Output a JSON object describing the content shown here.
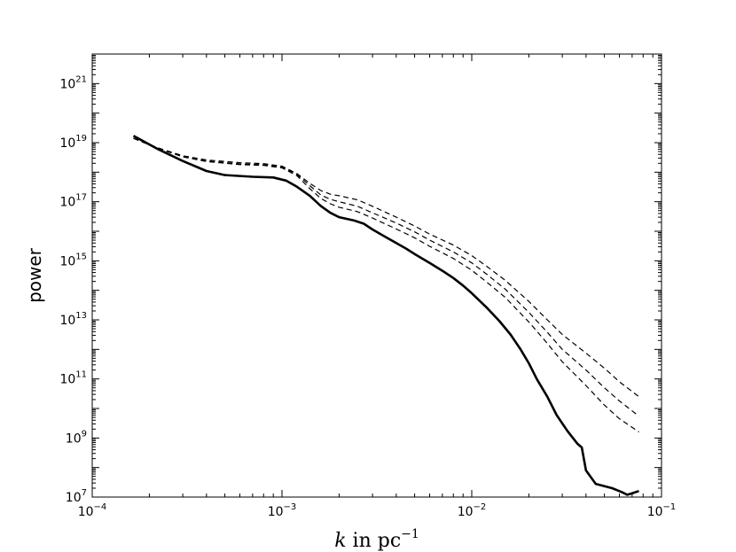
{
  "chart_data": {
    "type": "line",
    "title": "",
    "xlabel": "$k$ in pc$^{-1}$",
    "xlabel_parts": {
      "var": "k",
      "mid": " in pc",
      "sup": "−1"
    },
    "ylabel": "power",
    "x_scale": "log",
    "y_scale": "log",
    "xlim": [
      0.0001,
      0.1
    ],
    "ylim": [
      10000000.0,
      1e+22
    ],
    "grid": false,
    "legend": "none",
    "x_ticks": [
      {
        "base": "10",
        "exp": "-4",
        "value": 0.0001
      },
      {
        "base": "10",
        "exp": "-3",
        "value": 0.001
      },
      {
        "base": "10",
        "exp": "-2",
        "value": 0.01
      },
      {
        "base": "10",
        "exp": "-1",
        "value": 0.1
      }
    ],
    "y_ticks": [
      {
        "base": "10",
        "exp": "7",
        "value": 10000000.0
      },
      {
        "base": "10",
        "exp": "9",
        "value": 1000000000.0
      },
      {
        "base": "10",
        "exp": "11",
        "value": 100000000000.0
      },
      {
        "base": "10",
        "exp": "13",
        "value": 10000000000000.0
      },
      {
        "base": "10",
        "exp": "15",
        "value": 1000000000000000.0
      },
      {
        "base": "10",
        "exp": "17",
        "value": 1e+17
      },
      {
        "base": "10",
        "exp": "19",
        "value": 1e+19
      },
      {
        "base": "10",
        "exp": "21",
        "value": 1e+21
      }
    ],
    "series": [
      {
        "style": "solid",
        "color": "#000000",
        "points": [
          [
            0.000165,
            1.7e+19
          ],
          [
            0.00022,
            6.2e+18
          ],
          [
            0.0003,
            2.4e+18
          ],
          [
            0.0004,
            1.1e+18
          ],
          [
            0.0005,
            8e+17
          ],
          [
            0.0007,
            7e+17
          ],
          [
            0.0009,
            6.6e+17
          ],
          [
            0.00105,
            5.2e+17
          ],
          [
            0.0012,
            3.2e+17
          ],
          [
            0.0014,
            1.6e+17
          ],
          [
            0.0016,
            7.2e+16
          ],
          [
            0.0018,
            4.2e+16
          ],
          [
            0.002,
            3e+16
          ],
          [
            0.0024,
            2.3e+16
          ],
          [
            0.0027,
            1.8e+16
          ],
          [
            0.003,
            1.15e+16
          ],
          [
            0.0035,
            6500000000000000.0
          ],
          [
            0.004,
            4000000000000000.0
          ],
          [
            0.0045,
            2600000000000000.0
          ],
          [
            0.005,
            1700000000000000.0
          ],
          [
            0.006,
            850000000000000.0
          ],
          [
            0.007,
            460000000000000.0
          ],
          [
            0.008,
            260000000000000.0
          ],
          [
            0.009,
            145000000000000.0
          ],
          [
            0.01,
            80000000000000.0
          ],
          [
            0.012,
            26000000000000.0
          ],
          [
            0.014,
            9000000000000.0
          ],
          [
            0.016,
            3200000000000.0
          ],
          [
            0.018,
            1050000000000.0
          ],
          [
            0.02,
            340000000000.0
          ],
          [
            0.022,
            100000000000.0
          ],
          [
            0.025,
            25000000000.0
          ],
          [
            0.028,
            6000000000.0
          ],
          [
            0.032,
            1700000000.0
          ],
          [
            0.036,
            650000000.0
          ],
          [
            0.038,
            480000000.0
          ],
          [
            0.04,
            80000000.0
          ],
          [
            0.045,
            28000000.0
          ],
          [
            0.055,
            20000000.0
          ],
          [
            0.062,
            14500000.0
          ],
          [
            0.066,
            12000000.0
          ],
          [
            0.07,
            13500000.0
          ],
          [
            0.076,
            16000000.0
          ]
        ]
      },
      {
        "style": "dashed",
        "color": "#000000",
        "points": [
          [
            0.000165,
            1.4e+19
          ],
          [
            0.00022,
            6.8e+18
          ],
          [
            0.0003,
            3.6e+18
          ],
          [
            0.0004,
            2.6e+18
          ],
          [
            0.0006,
            2.1e+18
          ],
          [
            0.0008,
            1.95e+18
          ],
          [
            0.001,
            1.6e+18
          ],
          [
            0.0012,
            9e+17
          ],
          [
            0.0014,
            4.2e+17
          ],
          [
            0.0016,
            2.4e+17
          ],
          [
            0.0018,
            1.8e+17
          ],
          [
            0.002,
            1.6e+17
          ],
          [
            0.0025,
            1.15e+17
          ],
          [
            0.003,
            7e+16
          ],
          [
            0.004,
            3e+16
          ],
          [
            0.005,
            1.5e+16
          ],
          [
            0.006,
            8000000000000000.0
          ],
          [
            0.008,
            3400000000000000.0
          ],
          [
            0.01,
            1500000000000000.0
          ],
          [
            0.012,
            650000000000000.0
          ],
          [
            0.015,
            220000000000000.0
          ],
          [
            0.02,
            42000000000000.0
          ],
          [
            0.025,
            10000000000000.0
          ],
          [
            0.03,
            3200000000000.0
          ],
          [
            0.04,
            750000000000.0
          ],
          [
            0.05,
            230000000000.0
          ],
          [
            0.06,
            80000000000.0
          ],
          [
            0.076,
            25000000000.0
          ]
        ]
      },
      {
        "style": "dashed",
        "color": "#000000",
        "points": [
          [
            0.000165,
            1.4e+19
          ],
          [
            0.00022,
            6.6e+18
          ],
          [
            0.0003,
            3.4e+18
          ],
          [
            0.0004,
            2.4e+18
          ],
          [
            0.0006,
            1.9e+18
          ],
          [
            0.0008,
            1.8e+18
          ],
          [
            0.001,
            1.5e+18
          ],
          [
            0.0012,
            8.4e+17
          ],
          [
            0.0014,
            3.5e+17
          ],
          [
            0.0016,
            1.7e+17
          ],
          [
            0.0018,
            1.2e+17
          ],
          [
            0.002,
            1e+17
          ],
          [
            0.0025,
            7e+16
          ],
          [
            0.003,
            4.2e+16
          ],
          [
            0.004,
            1.9e+16
          ],
          [
            0.005,
            9500000000000000.0
          ],
          [
            0.006,
            5000000000000000.0
          ],
          [
            0.008,
            2000000000000000.0
          ],
          [
            0.01,
            850000000000000.0
          ],
          [
            0.012,
            350000000000000.0
          ],
          [
            0.015,
            110000000000000.0
          ],
          [
            0.02,
            18000000000000.0
          ],
          [
            0.025,
            3800000000000.0
          ],
          [
            0.03,
            1000000000000.0
          ],
          [
            0.04,
            200000000000.0
          ],
          [
            0.05,
            50000000000.0
          ],
          [
            0.06,
            18000000000.0
          ],
          [
            0.076,
            5500000000.0
          ]
        ]
      },
      {
        "style": "dashed",
        "color": "#000000",
        "points": [
          [
            0.000165,
            1.4e+19
          ],
          [
            0.00022,
            6.5e+18
          ],
          [
            0.0003,
            3.3e+18
          ],
          [
            0.0004,
            2.3e+18
          ],
          [
            0.0006,
            1.8e+18
          ],
          [
            0.0008,
            1.7e+18
          ],
          [
            0.001,
            1.4e+18
          ],
          [
            0.0012,
            7.6e+17
          ],
          [
            0.0014,
            2.8e+17
          ],
          [
            0.0016,
            1.3e+17
          ],
          [
            0.0018,
            8.5e+16
          ],
          [
            0.002,
            6.5e+16
          ],
          [
            0.0025,
            4.6e+16
          ],
          [
            0.003,
            2.8e+16
          ],
          [
            0.004,
            1.2e+16
          ],
          [
            0.005,
            6000000000000000.0
          ],
          [
            0.006,
            3100000000000000.0
          ],
          [
            0.008,
            1200000000000000.0
          ],
          [
            0.01,
            480000000000000.0
          ],
          [
            0.012,
            190000000000000.0
          ],
          [
            0.015,
            58000000000000.0
          ],
          [
            0.02,
            8500000000000.0
          ],
          [
            0.025,
            1600000000000.0
          ],
          [
            0.03,
            380000000000.0
          ],
          [
            0.04,
            60000000000.0
          ],
          [
            0.05,
            13000000000.0
          ],
          [
            0.06,
            4500000000.0
          ],
          [
            0.076,
            1600000000.0
          ]
        ]
      }
    ]
  }
}
